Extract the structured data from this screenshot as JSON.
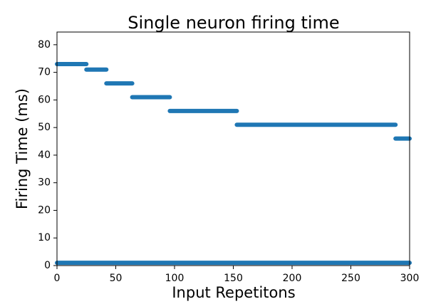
{
  "chart_data": {
    "type": "segments",
    "title": "Single neuron firing time",
    "x_label": "Input Repetitons",
    "y_label": "Firing Time (ms)",
    "color": "#1f77b4",
    "segments": [
      {
        "x": [
          0,
          25
        ],
        "y": 73
      },
      {
        "x": [
          25,
          42
        ],
        "y": 71
      },
      {
        "x": [
          42,
          64
        ],
        "y": 66
      },
      {
        "x": [
          64,
          96
        ],
        "y": 61
      },
      {
        "x": [
          96,
          153
        ],
        "y": 56
      },
      {
        "x": [
          153,
          288
        ],
        "y": 51
      },
      {
        "x": [
          288,
          300
        ],
        "y": 46
      },
      {
        "x": [
          0,
          300
        ],
        "y": 1
      }
    ],
    "xlim": [
      0,
      300
    ],
    "xticks": [
      0,
      50,
      100,
      150,
      200,
      250,
      300
    ],
    "ylim": [
      0,
      84.6
    ],
    "yticks": [
      0,
      10,
      20,
      30,
      40,
      50,
      60,
      70,
      80
    ],
    "grid": false
  }
}
